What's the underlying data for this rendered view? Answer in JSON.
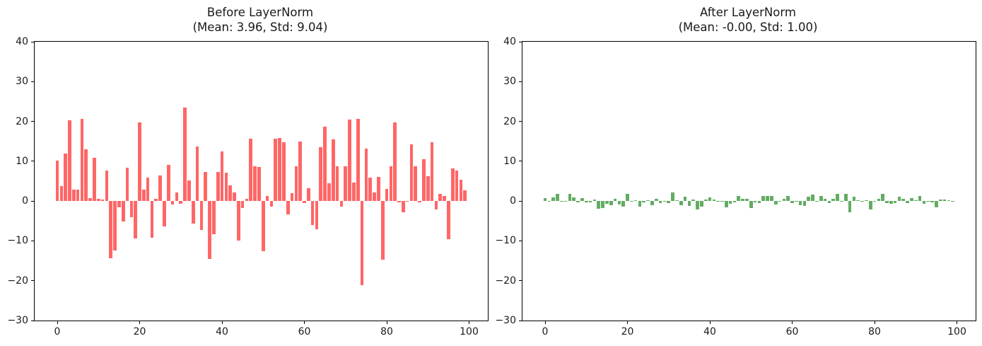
{
  "figure": {
    "background": "#ffffff",
    "axis_color": "#000000",
    "text_color": "#1a1a1a"
  },
  "chart_data": [
    {
      "type": "bar",
      "title": "Before LayerNorm",
      "subtitle": "(Mean: 3.96, Std: 9.04)",
      "mean": 3.96,
      "std": 9.04,
      "bar_color": "#ff6666",
      "grid": false,
      "legend": null,
      "xlim": [
        -5.5,
        104.5
      ],
      "ylim": [
        -30,
        40
      ],
      "xticks": [
        0,
        20,
        40,
        60,
        80,
        100
      ],
      "yticks": [
        -30,
        -20,
        -10,
        0,
        10,
        20,
        30,
        40
      ],
      "x_start": 0,
      "values": [
        10.2,
        3.7,
        12.0,
        20.3,
        2.9,
        2.9,
        20.7,
        13.0,
        0.7,
        10.8,
        0.6,
        0.4,
        7.7,
        -14.3,
        -12.4,
        -1.5,
        -5.1,
        8.4,
        -4.0,
        -9.4,
        19.8,
        2.9,
        5.9,
        -9.3,
        0.5,
        6.5,
        -6.3,
        9.0,
        -0.8,
        2.1,
        -0.7,
        23.5,
        5.1,
        -5.7,
        13.7,
        -7.2,
        7.3,
        -14.6,
        -8.3,
        7.3,
        12.4,
        7.1,
        3.9,
        2.1,
        -9.9,
        -1.8,
        0.5,
        15.6,
        8.75,
        8.6,
        -12.6,
        1.25,
        -1.4,
        15.7,
        15.8,
        14.8,
        -3.3,
        2.0,
        8.7,
        14.9,
        -0.5,
        3.2,
        -6.0,
        -7.1,
        13.6,
        18.6,
        4.4,
        15.4,
        8.8,
        -1.4,
        8.8,
        20.4,
        4.7,
        20.6,
        -21.2,
        13.2,
        5.9,
        2.1,
        6.1,
        -14.8,
        3.0,
        8.8,
        19.8,
        -0.4,
        -2.9,
        -0.1,
        14.2,
        8.7,
        -0.3,
        10.5,
        6.2,
        14.7,
        -2.1,
        1.8,
        1.2,
        -9.6,
        8.2,
        7.7,
        5.3,
        2.7
      ]
    },
    {
      "type": "bar",
      "title": "After LayerNorm",
      "subtitle": "(Mean: -0.00, Std: 1.00)",
      "mean": -0.0,
      "std": 1.0,
      "bar_color": "#63ac63",
      "grid": false,
      "legend": null,
      "xlim": [
        -5.5,
        104.5
      ],
      "ylim": [
        -30,
        40
      ],
      "xticks": [
        0,
        20,
        40,
        60,
        80,
        100
      ],
      "yticks": [
        -30,
        -20,
        -10,
        0,
        10,
        20,
        30,
        40
      ],
      "x_start": 0,
      "values": [
        0.69,
        -0.03,
        0.89,
        1.81,
        -0.12,
        -0.12,
        1.85,
        1.0,
        -0.36,
        0.76,
        -0.37,
        -0.39,
        0.41,
        -2.02,
        -1.81,
        -0.6,
        -1.0,
        0.49,
        -0.88,
        -1.48,
        1.75,
        -0.12,
        0.21,
        -1.47,
        -0.38,
        0.28,
        -1.13,
        0.56,
        -0.53,
        -0.21,
        -0.52,
        2.16,
        0.13,
        -1.07,
        1.08,
        -1.23,
        0.37,
        -2.05,
        -1.36,
        0.37,
        0.93,
        0.35,
        -0.01,
        -0.21,
        -1.53,
        -0.64,
        -0.38,
        1.29,
        0.53,
        0.51,
        -1.83,
        -0.3,
        -0.59,
        1.3,
        1.31,
        1.2,
        -0.8,
        -0.22,
        0.52,
        1.21,
        -0.49,
        -0.08,
        -1.1,
        -1.22,
        1.07,
        1.62,
        0.05,
        1.27,
        0.54,
        -0.59,
        0.54,
        1.82,
        0.08,
        1.84,
        -2.78,
        1.02,
        0.21,
        -0.21,
        0.24,
        -2.07,
        -0.11,
        0.54,
        1.75,
        -0.48,
        -0.76,
        -0.45,
        1.13,
        0.52,
        -0.47,
        0.72,
        0.25,
        1.19,
        -0.67,
        -0.24,
        -0.31,
        -1.5,
        0.47,
        0.41,
        0.15,
        -0.14
      ]
    }
  ]
}
